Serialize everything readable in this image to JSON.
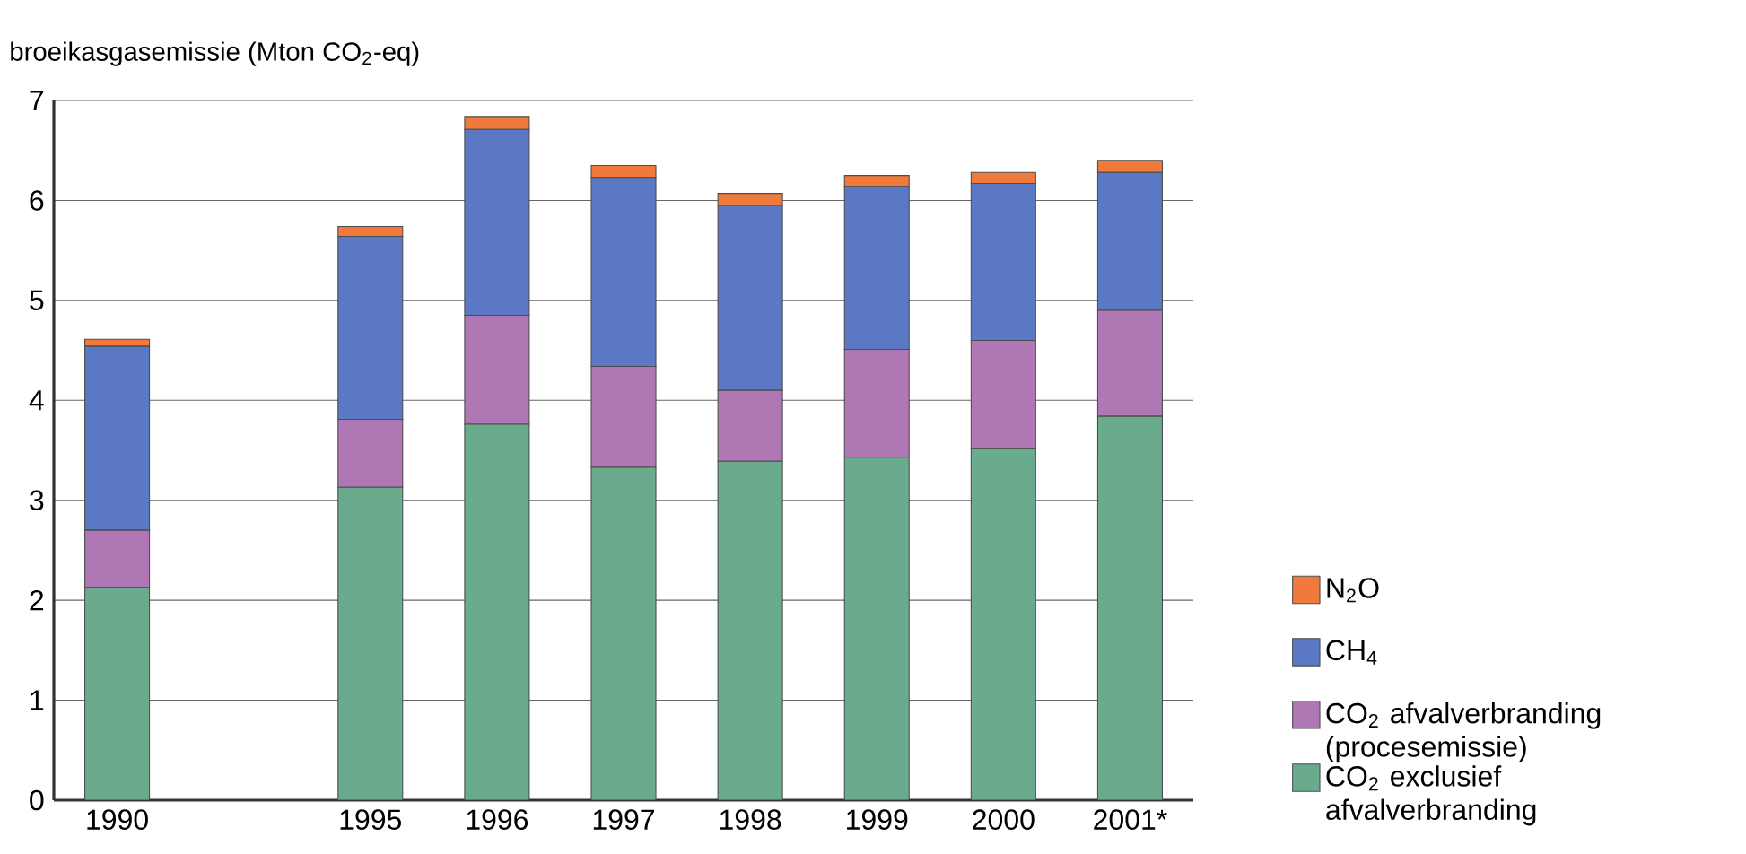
{
  "chart_data": {
    "type": "bar",
    "stacked": true,
    "ylabel": "broeikasgasemissie (Mton CO$_{2}$-eq)",
    "categories": [
      "1990",
      null,
      "1995",
      "1996",
      "1997",
      "1998",
      "1999",
      "2000",
      "2001*"
    ],
    "series": [
      {
        "name": "CO$_{2}$ exclusief afvalverbranding",
        "color": "#6aab8e",
        "values": [
          2.13,
          null,
          3.13,
          3.76,
          3.33,
          3.39,
          3.43,
          3.52,
          3.84
        ]
      },
      {
        "name": "CO$_{2}$ afvalverbranding (procesemissie)",
        "color": "#b077b5",
        "values": [
          0.57,
          null,
          0.68,
          1.09,
          1.01,
          0.71,
          1.08,
          1.08,
          1.06
        ]
      },
      {
        "name": "CH$_{4}$",
        "color": "#5a78c4",
        "values": [
          1.84,
          null,
          1.83,
          1.86,
          1.89,
          1.85,
          1.63,
          1.57,
          1.38
        ]
      },
      {
        "name": "N$_{2}$O",
        "color": "#f07a3c",
        "values": [
          0.07,
          null,
          0.1,
          0.13,
          0.12,
          0.12,
          0.11,
          0.11,
          0.12
        ]
      }
    ],
    "ylim": [
      0,
      7
    ],
    "yticks": [
      0,
      1,
      2,
      3,
      4,
      5,
      6,
      7
    ],
    "grid": "y",
    "legend": "right"
  }
}
